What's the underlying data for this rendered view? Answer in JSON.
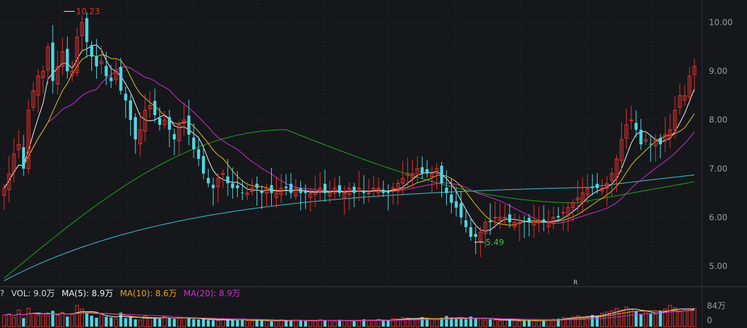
{
  "chart_data": {
    "type": "candlestick",
    "price_axis": {
      "ticks": [
        "10.00",
        "9.00",
        "8.00",
        "7.00",
        "6.00",
        "5.00"
      ],
      "range": [
        4.65,
        10.35
      ]
    },
    "annotations": {
      "high_label": "10.23",
      "low_label": "5.49",
      "marker": "R"
    },
    "ma_colors": {
      "ma5": "#f2f2f2",
      "ma10": "#e6c619",
      "ma20": "#d02fd0",
      "ma60": "#1fa71f",
      "ma120": "#3cc6d6"
    },
    "up_color": "#e8322a",
    "down_color": "#4fd7e2",
    "close": [
      6.6,
      6.9,
      7.3,
      7.5,
      7.0,
      8.2,
      8.6,
      8.9,
      9.0,
      9.5,
      8.8,
      9.1,
      9.4,
      9.0,
      9.0,
      9.7,
      10.0,
      9.6,
      9.3,
      9.1,
      9.2,
      8.9,
      8.8,
      9.0,
      8.6,
      8.4,
      8.0,
      7.6,
      7.8,
      8.2,
      8.3,
      8.1,
      7.9,
      8.0,
      7.8,
      7.6,
      7.9,
      8.0,
      7.7,
      7.4,
      7.2,
      6.9,
      6.7,
      6.6,
      6.8,
      6.9,
      6.7,
      6.6,
      6.6,
      6.5,
      6.5,
      6.6,
      6.6,
      6.5,
      6.6,
      6.5,
      6.5,
      6.6,
      6.6,
      6.5,
      6.6,
      6.5,
      6.5,
      6.5,
      6.5,
      6.6,
      6.5,
      6.5,
      6.6,
      6.5,
      6.5,
      6.6,
      6.5,
      6.6,
      6.5,
      6.5,
      6.6,
      6.6,
      6.5,
      6.5,
      6.6,
      6.7,
      6.8,
      6.9,
      6.9,
      7.0,
      6.9,
      6.9,
      6.9,
      7.0,
      6.7,
      6.5,
      6.3,
      6.2,
      6.0,
      5.8,
      5.6,
      5.6,
      5.7,
      5.9,
      5.9,
      6.0,
      6.0,
      6.0,
      5.9,
      5.9,
      5.9,
      5.9,
      5.9,
      5.9,
      5.9,
      5.9,
      5.9,
      6.0,
      6.0,
      6.1,
      6.2,
      6.3,
      6.4,
      6.5,
      6.6,
      6.6,
      6.6,
      6.6,
      6.7,
      6.9,
      7.2,
      7.6,
      7.9,
      8.0,
      7.8,
      7.5,
      7.6,
      7.5,
      7.6,
      7.5,
      7.7,
      7.8,
      8.2,
      8.5,
      8.5,
      8.9,
      9.1
    ],
    "volume": {
      "current": "9.0万",
      "axis_top": "84万",
      "axis_zero": "0",
      "ma5": "8.9万",
      "ma10": "8.6万",
      "ma20": "8.9万",
      "values": [
        38,
        42,
        30,
        55,
        28,
        60,
        44,
        38,
        41,
        35,
        52,
        38,
        47,
        33,
        40,
        70,
        58,
        44,
        36,
        29,
        41,
        33,
        30,
        25,
        46,
        28,
        31,
        24,
        22,
        35,
        30,
        27,
        26,
        33,
        28,
        25,
        31,
        29,
        27,
        24,
        23,
        26,
        22,
        21,
        20,
        25,
        23,
        22,
        21,
        24,
        19,
        20,
        22,
        21,
        20,
        18,
        19,
        23,
        20,
        19,
        22,
        21,
        18,
        20,
        19,
        23,
        21,
        20,
        18,
        22,
        20,
        19,
        18,
        21,
        24,
        22,
        20,
        23,
        19,
        22,
        26,
        25,
        30,
        28,
        24,
        27,
        31,
        26,
        24,
        22,
        29,
        35,
        30,
        27,
        25,
        24,
        33,
        28,
        26,
        22,
        24,
        21,
        19,
        22,
        24,
        20,
        18,
        19,
        22,
        20,
        19,
        21,
        22,
        24,
        26,
        30,
        28,
        32,
        36,
        30,
        34,
        38,
        36,
        44,
        48,
        52,
        60,
        55,
        64,
        58,
        50,
        42,
        48,
        44,
        40,
        52,
        58,
        70,
        62,
        48,
        55,
        58,
        60
      ]
    }
  },
  "volume_labels": {
    "vol": "VOL: 9.0万",
    "ma5": "MA(5): 8.9万",
    "ma10": "MA(10): 8.6万",
    "ma20": "MA(20): 8.9万",
    "q": "?"
  }
}
